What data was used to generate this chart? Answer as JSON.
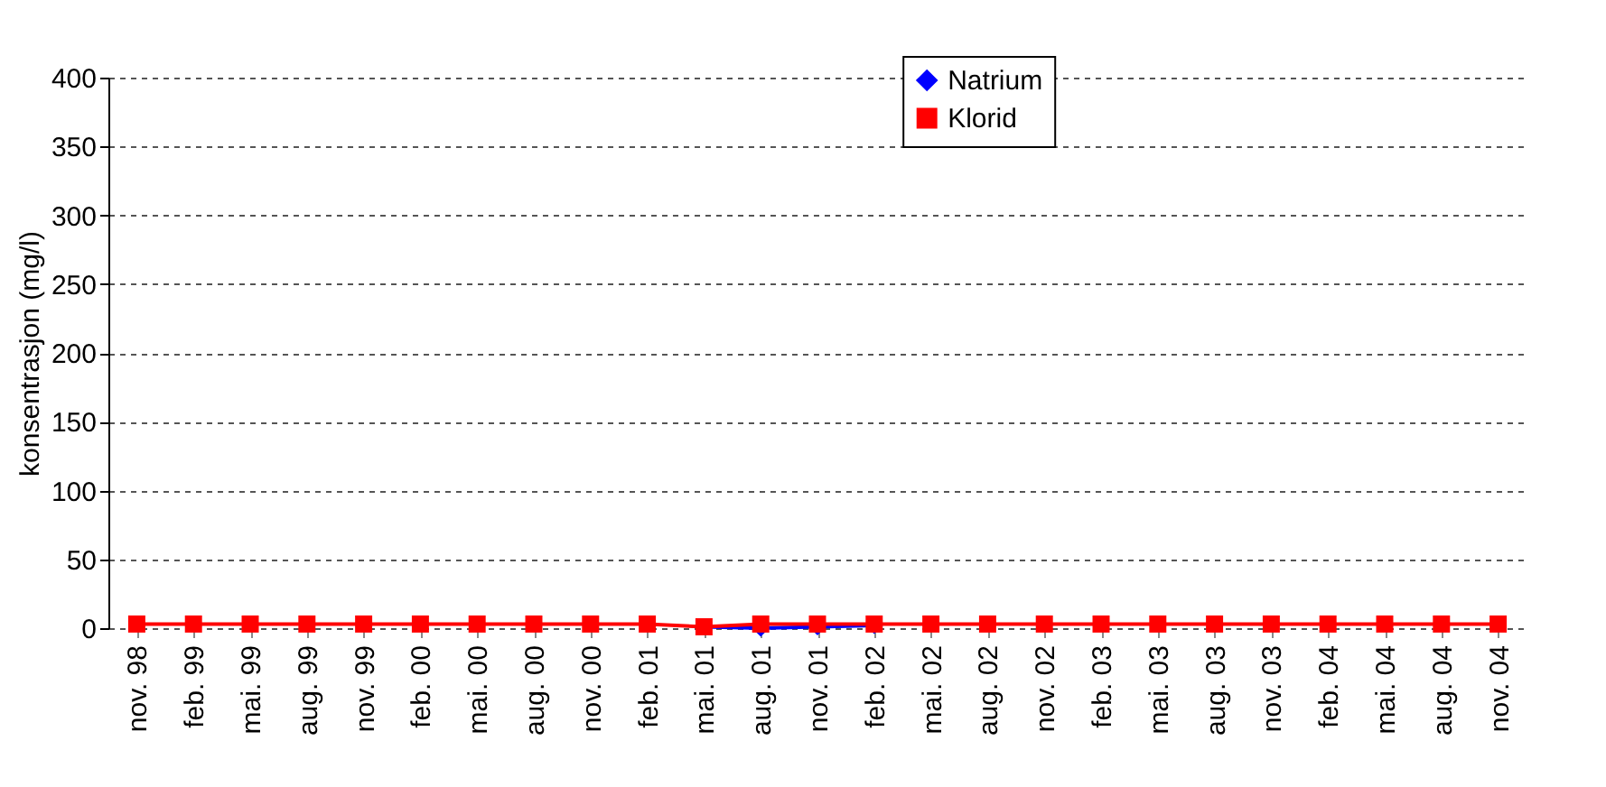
{
  "chart_data": {
    "type": "line",
    "ylabel": "konsentrasjon (mg/l)",
    "categories": [
      "nov. 98",
      "feb. 99",
      "mai. 99",
      "aug. 99",
      "nov. 99",
      "feb. 00",
      "mai. 00",
      "aug. 00",
      "nov. 00",
      "feb. 01",
      "mai. 01",
      "aug. 01",
      "nov. 01",
      "feb. 02",
      "mai. 02",
      "aug. 02",
      "nov. 02",
      "feb. 03",
      "mai. 03",
      "aug. 03",
      "nov. 03",
      "feb. 04",
      "mai. 04",
      "aug. 04",
      "nov. 04"
    ],
    "series": [
      {
        "name": "Natrium",
        "color": "#0000ff",
        "marker": "diamond",
        "values": [
          null,
          null,
          null,
          null,
          null,
          null,
          null,
          null,
          null,
          null,
          1,
          0,
          1,
          2,
          null,
          null,
          null,
          null,
          null,
          null,
          null,
          null,
          null,
          null,
          null
        ]
      },
      {
        "name": "Klorid",
        "color": "#ff0000",
        "marker": "square",
        "values": [
          3,
          3,
          3,
          3,
          3,
          3,
          3,
          3,
          3,
          3,
          1,
          3,
          3,
          3,
          3,
          3,
          3,
          3,
          3,
          3,
          3,
          3,
          3,
          3,
          3
        ]
      }
    ],
    "ylim": [
      0,
      400
    ],
    "yticks": [
      0,
      50,
      100,
      150,
      200,
      250,
      300,
      350,
      400
    ],
    "grid": "y",
    "legend": "top"
  }
}
